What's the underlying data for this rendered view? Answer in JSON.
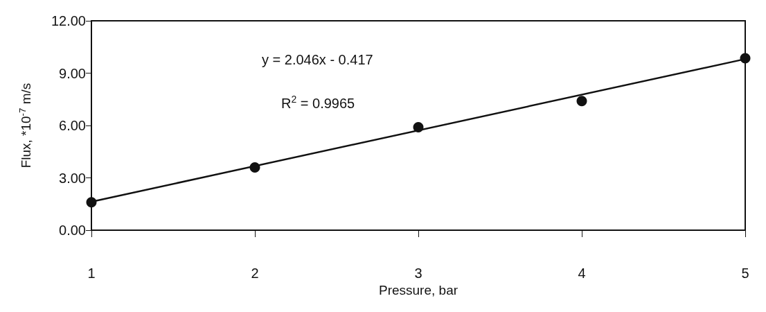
{
  "chart_data": {
    "type": "scatter",
    "xlabel": "Pressure, bar",
    "ylabel": "Flux, *10$^{-7}$ m/s",
    "x": [
      1,
      2,
      3,
      4,
      5
    ],
    "series": [
      {
        "color": "#111111",
        "values": [
          1.6,
          3.6,
          5.9,
          7.4,
          9.85
        ]
      },
      {
        "type": "line",
        "color": "#111111",
        "x": [
          1,
          5
        ],
        "values": [
          1.63,
          9.81
        ],
        "marker": "none",
        "line_style": "solid"
      }
    ],
    "annotations": [
      "y = 2.046x - 0.417",
      "R$^{2}$ = 0.9965"
    ],
    "xlim": [
      1,
      5
    ],
    "xticks": [
      1,
      2,
      3,
      4,
      5
    ],
    "ylim": [
      0,
      12
    ],
    "yticks": [
      {
        "value": 0,
        "label": "0.00"
      },
      {
        "value": 3,
        "label": "3.00"
      },
      {
        "value": 6,
        "label": "6.00"
      },
      {
        "value": 9,
        "label": "9.00"
      },
      {
        "value": 12,
        "label": "12.00"
      }
    ],
    "marker": "circle",
    "grid": false
  }
}
